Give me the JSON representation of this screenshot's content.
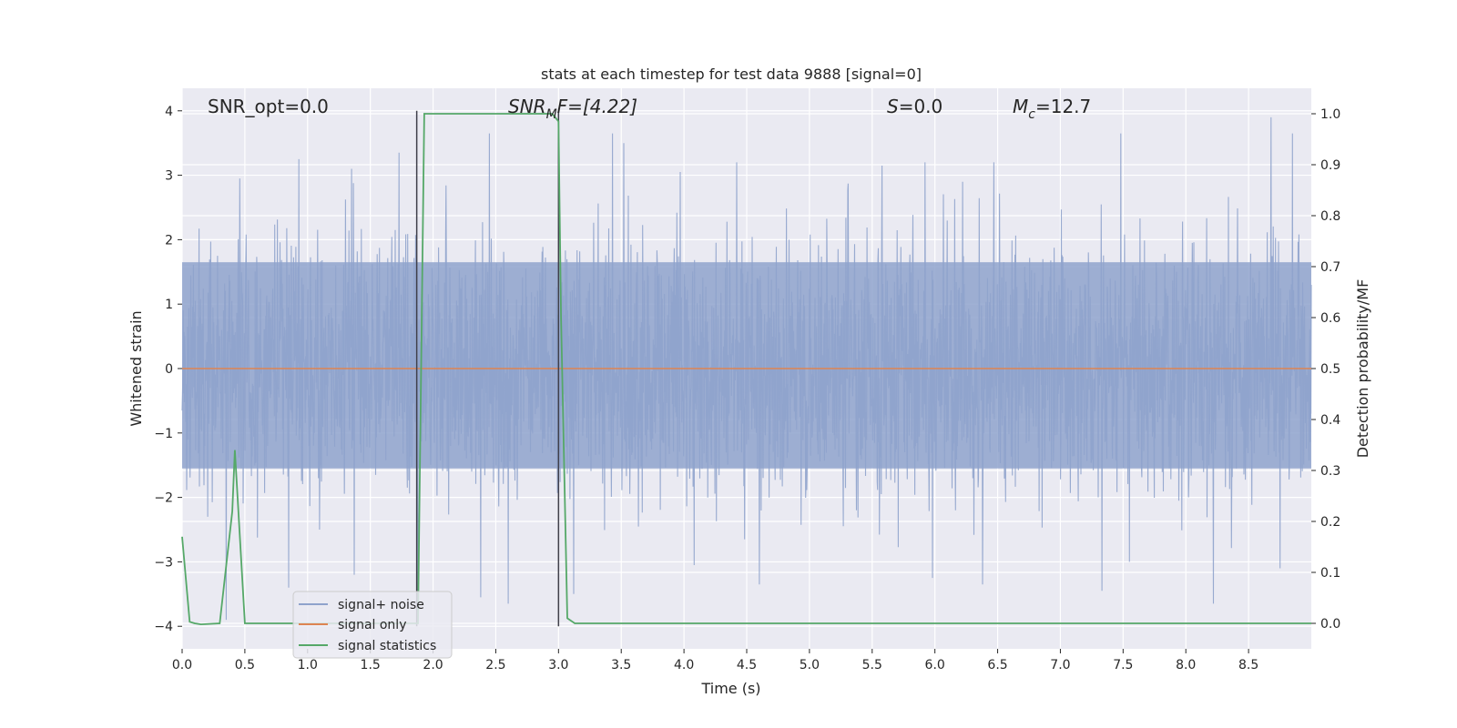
{
  "chart_data": {
    "type": "line",
    "title": "stats at each timestep for test data 9888 [signal=0]",
    "xlabel": "Time (s)",
    "ylabel": "Whitened strain",
    "ylabel_right": "Detection probability/MF",
    "xlim": [
      0.0,
      9.0
    ],
    "ylim": [
      -4.35,
      4.35
    ],
    "ylim_right": [
      -0.05,
      1.05
    ],
    "x_ticks": [
      "0.0",
      "0.5",
      "1.0",
      "1.5",
      "2.0",
      "2.5",
      "3.0",
      "3.5",
      "4.0",
      "4.5",
      "5.0",
      "5.5",
      "6.0",
      "6.5",
      "7.0",
      "7.5",
      "8.0",
      "8.5"
    ],
    "y_ticks": [
      "4",
      "3",
      "2",
      "1",
      "0",
      "−1",
      "−2",
      "−3",
      "−4"
    ],
    "y_ticks_right": [
      "1.0",
      "0.9",
      "0.8",
      "0.7",
      "0.6",
      "0.5",
      "0.4",
      "0.3",
      "0.2",
      "0.1",
      "0.0"
    ],
    "grid": true,
    "legend_placement": "lower-left",
    "annotations": {
      "snr_opt": "SNR_opt=0.0",
      "snr_mf_base": "SNR",
      "snr_mf_sub": "M",
      "snr_mf_rest": "F=[4.22]",
      "s_italic": "S",
      "s_rest": "=0.0",
      "mc_italic": "M",
      "mc_sub": "c",
      "mc_rest": "=12.7"
    },
    "series": [
      {
        "name": "signal+ noise",
        "color": "#8fa3cc",
        "kind": "noise strain, dense random, approx amplitude ±4",
        "dense_band": [
          -1.55,
          1.65
        ],
        "peak_x": [
          0.35,
          0.46,
          0.93,
          1.35,
          1.73,
          2.45,
          3.43,
          3.52,
          3.97,
          4.42,
          5.58,
          5.92,
          6.22,
          6.47,
          7.48,
          8.68,
          8.85
        ],
        "peak_y": [
          3.25,
          2.95,
          3.25,
          3.1,
          3.35,
          3.65,
          3.65,
          3.5,
          3.05,
          3.2,
          3.15,
          3.2,
          2.9,
          3.2,
          3.65,
          3.9,
          3.65
        ],
        "trough_x": [
          0.35,
          0.85,
          1.37,
          1.88,
          2.38,
          2.6,
          3.12,
          4.08,
          4.6,
          5.98,
          6.38,
          7.33,
          7.55,
          8.22,
          8.75
        ],
        "trough_y": [
          -3.9,
          -3.4,
          -3.2,
          -3.7,
          -3.55,
          -3.65,
          -3.5,
          -3.05,
          -3.35,
          -3.25,
          -3.35,
          -3.45,
          -3.0,
          -3.65,
          -3.1
        ]
      },
      {
        "name": "signal only",
        "color": "#dd8452",
        "x": [
          0.0,
          9.0
        ],
        "y": [
          0.0,
          0.0
        ]
      },
      {
        "name": "signal statistics",
        "color": "#55a868",
        "axis": "right",
        "x": [
          0.0,
          0.06,
          0.1,
          0.15,
          0.3,
          0.4,
          0.42,
          0.5,
          0.55,
          0.6,
          1.88,
          1.93,
          2.0,
          2.5,
          2.95,
          3.0,
          3.02,
          3.07,
          3.13,
          3.2,
          9.0
        ],
        "y": [
          0.17,
          0.003,
          0.0,
          -0.002,
          0.0,
          0.22,
          0.34,
          0.0,
          0.0,
          0.0,
          0.0,
          1.0,
          1.0,
          1.0,
          1.0,
          0.985,
          0.6,
          0.01,
          0.0,
          0.0,
          0.0
        ]
      }
    ],
    "vertical_lines_x": [
      1.87,
      3.0
    ],
    "vertical_line_color": "#3f3f4a"
  }
}
